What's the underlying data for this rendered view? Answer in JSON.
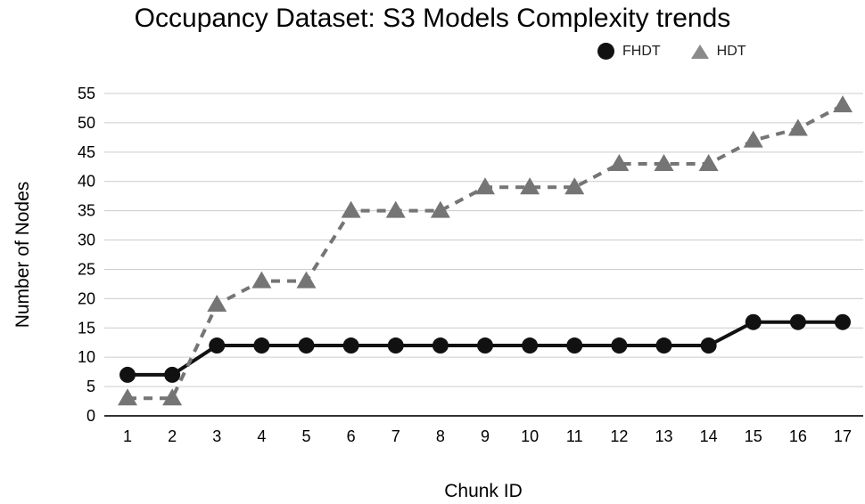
{
  "chart_data": {
    "type": "line",
    "title": "Occupancy Dataset: S3 Models Complexity trends",
    "xlabel": "Chunk ID",
    "ylabel": "Number of Nodes",
    "categories": [
      "1",
      "2",
      "3",
      "4",
      "5",
      "6",
      "7",
      "8",
      "9",
      "10",
      "11",
      "12",
      "13",
      "14",
      "15",
      "16",
      "17"
    ],
    "yticks": [
      0,
      5,
      10,
      15,
      20,
      25,
      30,
      35,
      40,
      45,
      50,
      55
    ],
    "ylim": [
      0,
      55
    ],
    "grid": "horizontal",
    "legend_position": "top-right",
    "colors": {
      "grid_line": "#cccccc",
      "baseline": "#333333",
      "fhdt": "#111111",
      "hdt": "#757575"
    },
    "series": [
      {
        "name": "FHDT",
        "marker": "circle",
        "line_style": "solid",
        "color": "#111111",
        "values": [
          7,
          7,
          12,
          12,
          12,
          12,
          12,
          12,
          12,
          12,
          12,
          12,
          12,
          12,
          16,
          16,
          16
        ]
      },
      {
        "name": "HDT",
        "marker": "triangle",
        "line_style": "dashed",
        "color": "#757575",
        "values": [
          3,
          3,
          19,
          23,
          23,
          35,
          35,
          35,
          39,
          39,
          39,
          43,
          43,
          43,
          47,
          49,
          53
        ]
      }
    ]
  }
}
